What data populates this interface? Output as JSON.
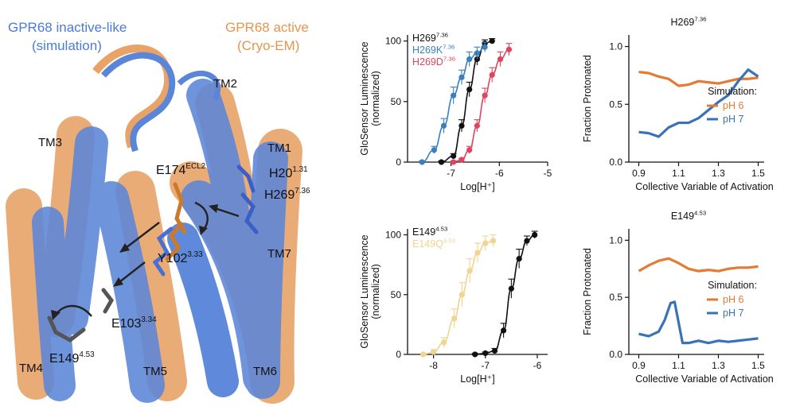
{
  "structure": {
    "title_inactive_line1": "GPR68 inactive-like",
    "title_inactive_line2": "(simulation)",
    "title_active_line1": "GPR68 active",
    "title_active_line2": "(Cryo-EM)",
    "tm_labels": [
      "TM1",
      "TM2",
      "TM3",
      "TM4",
      "TM5",
      "TM6",
      "TM7"
    ],
    "residues": {
      "e174": {
        "name": "E174",
        "sup": "ECL2"
      },
      "h20": {
        "name": "H20",
        "sup": "1.31"
      },
      "h269": {
        "name": "H269",
        "sup": "7.36"
      },
      "y102": {
        "name": "Y102",
        "sup": "3.33"
      },
      "e103": {
        "name": "E103",
        "sup": "3.34"
      },
      "e149": {
        "name": "E149",
        "sup": "4.53"
      }
    },
    "colors": {
      "inactive": "#4a7bd8",
      "active": "#e8a468"
    }
  },
  "chart_data": [
    {
      "type": "line",
      "ylabel_line1": "GloSensor Luminescence",
      "ylabel_line2": "(normalized)",
      "xlabel": "Log[H⁺]",
      "xlim": [
        -7.9,
        -5
      ],
      "ylim": [
        0,
        105
      ],
      "xticks": [
        "-7",
        "-6",
        "-5"
      ],
      "yticks": [
        "0",
        "50",
        "100"
      ],
      "legend": [
        {
          "name": "H269",
          "sup": "7.36",
          "color": "#111111"
        },
        {
          "name": "H269K",
          "sup": "7.36",
          "color": "#3a7fc1"
        },
        {
          "name": "H269D",
          "sup": "7.36",
          "color": "#e0455f"
        }
      ],
      "series": [
        {
          "name": "H269",
          "color": "#111111",
          "x": [
            -7.2,
            -6.95,
            -6.78,
            -6.62,
            -6.46,
            -6.3,
            -6.15
          ],
          "y": [
            0,
            5,
            30,
            60,
            85,
            98,
            100
          ],
          "err": [
            1,
            2,
            5,
            6,
            5,
            3,
            2
          ]
        },
        {
          "name": "H269K",
          "color": "#3a7fc1",
          "x": [
            -7.6,
            -7.35,
            -7.15,
            -6.95,
            -6.78,
            -6.62,
            -6.46,
            -6.3
          ],
          "y": [
            0,
            10,
            30,
            55,
            70,
            85,
            90,
            95
          ],
          "err": [
            1,
            3,
            6,
            7,
            6,
            6,
            5,
            4
          ]
        },
        {
          "name": "H269D",
          "color": "#e0455f",
          "x": [
            -6.95,
            -6.78,
            -6.62,
            -6.46,
            -6.3,
            -6.15,
            -5.98,
            -5.8
          ],
          "y": [
            0,
            2,
            10,
            30,
            55,
            72,
            85,
            93
          ],
          "err": [
            1,
            1,
            3,
            5,
            6,
            6,
            6,
            5
          ]
        }
      ]
    },
    {
      "type": "line",
      "title": "H269",
      "title_sup": "7.36",
      "ylabel": "Fraction Protonated",
      "xlabel": "Collective Variable of Activation",
      "xlim": [
        0.85,
        1.53
      ],
      "ylim": [
        0,
        1.1
      ],
      "xticks": [
        "0.9",
        "1.1",
        "1.3",
        "1.5"
      ],
      "yticks": [
        "0.0",
        "0.5",
        "1.0"
      ],
      "legend_title": "Simulation:",
      "legend": [
        {
          "name": "pH 6",
          "color": "#e57a34"
        },
        {
          "name": "pH 7",
          "color": "#3a72b8"
        }
      ],
      "series": [
        {
          "name": "pH 6",
          "color": "#e57a34",
          "x": [
            0.9,
            0.95,
            1.0,
            1.05,
            1.1,
            1.15,
            1.2,
            1.25,
            1.3,
            1.35,
            1.4,
            1.45,
            1.5
          ],
          "y": [
            0.78,
            0.77,
            0.74,
            0.72,
            0.66,
            0.67,
            0.7,
            0.69,
            0.68,
            0.7,
            0.72,
            0.72,
            0.73
          ]
        },
        {
          "name": "pH 7",
          "color": "#3a72b8",
          "x": [
            0.9,
            0.95,
            1.0,
            1.05,
            1.1,
            1.15,
            1.2,
            1.25,
            1.3,
            1.35,
            1.4,
            1.45,
            1.5
          ],
          "y": [
            0.26,
            0.25,
            0.22,
            0.3,
            0.34,
            0.34,
            0.38,
            0.45,
            0.52,
            0.58,
            0.7,
            0.8,
            0.74
          ]
        }
      ]
    },
    {
      "type": "line",
      "ylabel_line1": "GloSensor Luminescence",
      "ylabel_line2": "(normalized)",
      "xlabel": "Log[H⁺]",
      "xlim": [
        -8.5,
        -5.8
      ],
      "ylim": [
        0,
        105
      ],
      "xticks": [
        "-8",
        "-7",
        "-6"
      ],
      "yticks": [
        "0",
        "50",
        "100"
      ],
      "legend": [
        {
          "name": "E149",
          "sup": "4.53",
          "color": "#111111"
        },
        {
          "name": "E149Q",
          "sup": "4.53",
          "color": "#f0d48f"
        }
      ],
      "series": [
        {
          "name": "E149",
          "color": "#111111",
          "x": [
            -7.2,
            -7.0,
            -6.82,
            -6.65,
            -6.5,
            -6.35,
            -6.2,
            -6.05
          ],
          "y": [
            0,
            1,
            3,
            20,
            55,
            80,
            95,
            100
          ],
          "err": [
            1,
            1,
            2,
            6,
            8,
            8,
            4,
            3
          ]
        },
        {
          "name": "E149Q",
          "color": "#f0d48f",
          "x": [
            -8.2,
            -8.0,
            -7.8,
            -7.6,
            -7.45,
            -7.3,
            -7.15,
            -7.0,
            -6.85
          ],
          "y": [
            0,
            2,
            10,
            30,
            50,
            70,
            85,
            93,
            95
          ],
          "err": [
            1,
            2,
            4,
            8,
            10,
            10,
            8,
            6,
            5
          ]
        }
      ]
    },
    {
      "type": "line",
      "title": "E149",
      "title_sup": "4.53",
      "ylabel": "Fraction Protonated",
      "xlabel": "Collective Variable of Activation",
      "xlim": [
        0.85,
        1.53
      ],
      "ylim": [
        0,
        1.1
      ],
      "xticks": [
        "0.9",
        "1.1",
        "1.3",
        "1.5"
      ],
      "yticks": [
        "0.0",
        "0.5",
        "1.0"
      ],
      "legend_title": "Simulation:",
      "legend": [
        {
          "name": "pH 6",
          "color": "#e57a34"
        },
        {
          "name": "pH 7",
          "color": "#3a72b8"
        }
      ],
      "series": [
        {
          "name": "pH 6",
          "color": "#e57a34",
          "x": [
            0.9,
            0.95,
            1.0,
            1.05,
            1.1,
            1.15,
            1.2,
            1.25,
            1.3,
            1.35,
            1.4,
            1.45,
            1.5
          ],
          "y": [
            0.73,
            0.78,
            0.82,
            0.84,
            0.8,
            0.75,
            0.73,
            0.74,
            0.73,
            0.75,
            0.76,
            0.76,
            0.77
          ]
        },
        {
          "name": "pH 7",
          "color": "#3a72b8",
          "x": [
            0.9,
            0.95,
            1.0,
            1.03,
            1.06,
            1.08,
            1.1,
            1.12,
            1.15,
            1.2,
            1.25,
            1.3,
            1.35,
            1.4,
            1.45,
            1.5
          ],
          "y": [
            0.18,
            0.16,
            0.2,
            0.3,
            0.45,
            0.46,
            0.28,
            0.1,
            0.1,
            0.12,
            0.1,
            0.12,
            0.11,
            0.12,
            0.13,
            0.14
          ]
        }
      ]
    }
  ]
}
